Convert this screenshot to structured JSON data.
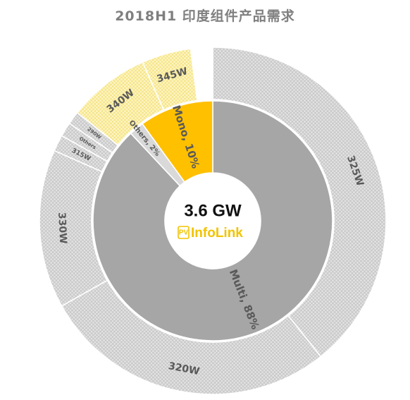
{
  "chart_data": {
    "type": "donut",
    "title": "2018H1  印度组件产品需求",
    "center_label": "3.6 GW",
    "inner_ring": [
      {
        "name": "Multi",
        "label": "Multi, 88%",
        "value": 88,
        "color": "#a6a6a6"
      },
      {
        "name": "Others",
        "label": "Others, 2%",
        "value": 2,
        "color": "#d9d9d9"
      },
      {
        "name": "Mono",
        "label": "Mono, 10%",
        "value": 10,
        "color": "#ffc000"
      }
    ],
    "outer_ring": [
      {
        "label": "325W",
        "value": 38.5,
        "color": "#d0d0d0"
      },
      {
        "label": "320W",
        "value": 27,
        "color": "#d0d0d0"
      },
      {
        "label": "330W",
        "value": 14.5,
        "color": "#d0d0d0"
      },
      {
        "label": "315W",
        "value": 1.5,
        "color": "#d0d0d0"
      },
      {
        "label": "Others",
        "value": 1.3,
        "color": "#d0d0d0"
      },
      {
        "label": "290W",
        "value": 1.2,
        "color": "#d0d0d0"
      },
      {
        "label": "340W",
        "value": 7.5,
        "color": "#fff2a8"
      },
      {
        "label": "345W",
        "value": 4.5,
        "color": "#fff2a8"
      },
      {
        "label": "",
        "value": 2,
        "color": "#ffffff"
      }
    ]
  },
  "logo": {
    "badge": "PV",
    "text": "InfoLink",
    "color": "#f2c300"
  }
}
